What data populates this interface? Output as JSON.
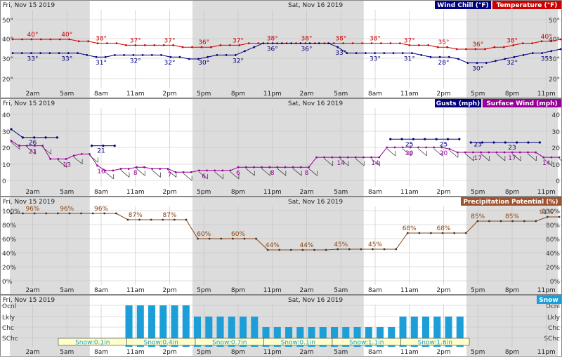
{
  "colors": {
    "night_shade": "#dcdcdc",
    "grid": "#bfbfbf",
    "wind_chill": "#000080",
    "temperature": "#cc0000",
    "gusts": "#000080",
    "surface_wind": "#990099",
    "precip": "#8b4513",
    "precip_legend_bg": "#a0522d",
    "snow": "#1c9fd8",
    "snow_label_bg": "#ffffcc",
    "snow_label_text": "#1c9fd8",
    "barb": "#333333"
  },
  "date_labels": [
    "Fri, Nov 15 2019",
    "Sat, Nov 16 2019"
  ],
  "time_labels": [
    "2am",
    "5am",
    "8am",
    "11am",
    "2pm",
    "5pm",
    "8pm",
    "11pm",
    "2am",
    "5am",
    "8am",
    "11am",
    "2pm",
    "5pm",
    "8pm",
    "11pm"
  ],
  "night_shading_hours": [
    [
      0,
      7
    ],
    [
      16,
      31
    ],
    [
      40,
      48
    ]
  ],
  "chart_data": [
    {
      "type": "line",
      "panel": "temperature",
      "legend": [
        "Wind Chill (°F)",
        "Temperature (°F)"
      ],
      "y_ticks": [
        "50°",
        "40°",
        "30°",
        "20°"
      ],
      "ylim": [
        15,
        55
      ],
      "series": [
        {
          "name": "Temperature (°F)",
          "values": [
            40,
            40,
            40,
            40,
            40,
            40,
            40,
            39,
            39,
            38,
            38,
            38,
            37,
            37,
            37,
            37,
            37,
            37,
            36,
            36,
            36,
            36,
            37,
            37,
            37,
            38,
            38,
            38,
            38,
            38,
            38,
            38,
            38,
            38,
            38,
            38,
            38,
            38,
            38,
            38,
            38,
            38,
            37,
            37,
            37,
            36,
            36,
            35,
            35,
            35,
            35,
            36,
            36,
            37,
            38,
            38,
            39,
            39,
            40
          ],
          "labels": [
            {
              "i": 2,
              "t": "40°"
            },
            {
              "i": 5,
              "t": "40°"
            },
            {
              "i": 8,
              "t": "38°"
            },
            {
              "i": 11,
              "t": "37°"
            },
            {
              "i": 14,
              "t": "37°"
            },
            {
              "i": 17,
              "t": "36°"
            },
            {
              "i": 20,
              "t": "37°"
            },
            {
              "i": 23,
              "t": "38°"
            },
            {
              "i": 26,
              "t": "38°"
            },
            {
              "i": 29,
              "t": "38°"
            },
            {
              "i": 32,
              "t": "38°"
            },
            {
              "i": 35,
              "t": "37°"
            },
            {
              "i": 38,
              "t": "35°"
            },
            {
              "i": 41,
              "t": "36°"
            },
            {
              "i": 44,
              "t": "38°"
            },
            {
              "i": 47,
              "t": "40°"
            }
          ]
        },
        {
          "name": "Wind Chill (°F)",
          "values": [
            33,
            33,
            33,
            33,
            33,
            33,
            33,
            33,
            32,
            31,
            31,
            32,
            32,
            32,
            32,
            32,
            32,
            31,
            31,
            30,
            30,
            31,
            32,
            32,
            32,
            34,
            36,
            38,
            38,
            38,
            38,
            38,
            38,
            38,
            38,
            36,
            33,
            33,
            33,
            33,
            33,
            33,
            33,
            33,
            32,
            31,
            31,
            31,
            30,
            28,
            28,
            28,
            29,
            30,
            31,
            32,
            33,
            33,
            34,
            35
          ],
          "labels": [
            {
              "i": 2,
              "t": "33°"
            },
            {
              "i": 5,
              "t": "33°"
            },
            {
              "i": 8,
              "t": "31°"
            },
            {
              "i": 11,
              "t": "32°"
            },
            {
              "i": 14,
              "t": "32°"
            },
            {
              "i": 17,
              "t": "30°"
            },
            {
              "i": 20,
              "t": "32°"
            },
            {
              "i": 23,
              "t": "36°"
            },
            {
              "i": 26,
              "t": "36°"
            },
            {
              "i": 29,
              "t": "33°"
            },
            {
              "i": 32,
              "t": "33°"
            },
            {
              "i": 35,
              "t": "31°"
            },
            {
              "i": 38,
              "t": "28°"
            },
            {
              "i": 41,
              "t": "30°"
            },
            {
              "i": 44,
              "t": "32°"
            },
            {
              "i": 47,
              "t": "35°"
            }
          ]
        }
      ]
    },
    {
      "type": "line",
      "panel": "wind",
      "legend": [
        "Gusts (mph)",
        "Surface Wind (mph)"
      ],
      "y_ticks": [
        "40",
        "30",
        "20",
        "10",
        "0"
      ],
      "ylim": [
        0,
        45
      ],
      "series": [
        {
          "name": "Surface Wind (mph)",
          "values": [
            24,
            21,
            21,
            21,
            21,
            13,
            13,
            13,
            15,
            16,
            16,
            9,
            6,
            6,
            7,
            7,
            8,
            8,
            7,
            7,
            7,
            5,
            5,
            5,
            6,
            6,
            6,
            6,
            6,
            8,
            8,
            8,
            8,
            8,
            8,
            8,
            8,
            8,
            8,
            14,
            14,
            14,
            14,
            14,
            14,
            14,
            14,
            14,
            20,
            20,
            20,
            20,
            20,
            20,
            20,
            20,
            19,
            17,
            17,
            17,
            17,
            17,
            17,
            17,
            17,
            17,
            17,
            17,
            14,
            14,
            14
          ],
          "labels": [
            {
              "i": 2,
              "t": "21"
            },
            {
              "i": 5,
              "t": "13"
            },
            {
              "i": 8,
              "t": "16"
            },
            {
              "i": 11,
              "t": "8"
            },
            {
              "i": 14,
              "t": "7"
            },
            {
              "i": 17,
              "t": "6"
            },
            {
              "i": 20,
              "t": "6"
            },
            {
              "i": 23,
              "t": "8"
            },
            {
              "i": 26,
              "t": "8"
            },
            {
              "i": 29,
              "t": "14"
            },
            {
              "i": 32,
              "t": "14"
            },
            {
              "i": 35,
              "t": "20"
            },
            {
              "i": 38,
              "t": "20"
            },
            {
              "i": 41,
              "t": "17"
            },
            {
              "i": 44,
              "t": "17"
            },
            {
              "i": 47,
              "t": "14"
            }
          ]
        },
        {
          "name": "Gusts (mph)",
          "segments": [
            {
              "start": 0,
              "values": [
                31,
                26,
                26,
                26,
                26
              ]
            },
            {
              "start": 7,
              "values": [
                21,
                21,
                21
              ]
            },
            {
              "start": 33,
              "values": [
                25,
                25,
                25,
                25,
                25,
                25,
                25
              ]
            },
            {
              "start": 40,
              "values": [
                23,
                23,
                23,
                23,
                23,
                23,
                23
              ]
            }
          ],
          "labels": [
            {
              "i": 2,
              "t": "26"
            },
            {
              "i": 8,
              "t": "21"
            },
            {
              "i": 35,
              "t": "25"
            },
            {
              "i": 38,
              "t": "25"
            },
            {
              "i": 41,
              "t": "23"
            },
            {
              "i": 44,
              "t": "23"
            }
          ]
        }
      ]
    },
    {
      "type": "line",
      "panel": "precipitation",
      "legend": [
        "Precipitation Potential (%)"
      ],
      "y_ticks": [
        "100%",
        "80%",
        "60%",
        "40%",
        "20%",
        "0%"
      ],
      "ylim": [
        0,
        105
      ],
      "series": [
        {
          "name": "Precipitation Potential (%)",
          "values": [
            96,
            96,
            96,
            96,
            96,
            96,
            96,
            96,
            96,
            96,
            87,
            87,
            87,
            87,
            87,
            87,
            60,
            60,
            60,
            60,
            60,
            60,
            44,
            44,
            44,
            44,
            44,
            44,
            45,
            45,
            45,
            45,
            45,
            45,
            68,
            68,
            68,
            68,
            68,
            68,
            85,
            85,
            85,
            85,
            85,
            85,
            91,
            91
          ],
          "labels": [
            {
              "i": 2,
              "t": "96%"
            },
            {
              "i": 5,
              "t": "96%"
            },
            {
              "i": 8,
              "t": "96%"
            },
            {
              "i": 11,
              "t": "87%"
            },
            {
              "i": 14,
              "t": "87%"
            },
            {
              "i": 17,
              "t": "60%"
            },
            {
              "i": 20,
              "t": "60%"
            },
            {
              "i": 23,
              "t": "44%"
            },
            {
              "i": 26,
              "t": "44%"
            },
            {
              "i": 29,
              "t": "45%"
            },
            {
              "i": 32,
              "t": "45%"
            },
            {
              "i": 35,
              "t": "68%"
            },
            {
              "i": 38,
              "t": "68%"
            },
            {
              "i": 41,
              "t": "85%"
            },
            {
              "i": 44,
              "t": "85%"
            },
            {
              "i": 47,
              "t": "91%"
            }
          ]
        }
      ]
    },
    {
      "type": "bar",
      "panel": "snow",
      "legend": [
        "Snow"
      ],
      "categories_y": [
        "Ocnl",
        "Lkly",
        "Chc",
        "SChc"
      ],
      "bars": [
        {
          "hour": 10,
          "level": 4
        },
        {
          "hour": 11,
          "level": 4
        },
        {
          "hour": 12,
          "level": 4
        },
        {
          "hour": 13,
          "level": 4
        },
        {
          "hour": 14,
          "level": 4
        },
        {
          "hour": 15,
          "level": 4
        },
        {
          "hour": 16,
          "level": 3
        },
        {
          "hour": 17,
          "level": 3
        },
        {
          "hour": 18,
          "level": 3
        },
        {
          "hour": 19,
          "level": 3
        },
        {
          "hour": 20,
          "level": 3
        },
        {
          "hour": 21,
          "level": 3
        },
        {
          "hour": 22,
          "level": 2
        },
        {
          "hour": 23,
          "level": 2
        },
        {
          "hour": 24,
          "level": 2
        },
        {
          "hour": 25,
          "level": 2
        },
        {
          "hour": 26,
          "level": 2
        },
        {
          "hour": 27,
          "level": 2
        },
        {
          "hour": 28,
          "level": 2
        },
        {
          "hour": 29,
          "level": 2
        },
        {
          "hour": 30,
          "level": 2
        },
        {
          "hour": 31,
          "level": 2
        },
        {
          "hour": 32,
          "level": 2
        },
        {
          "hour": 33,
          "level": 2
        },
        {
          "hour": 34,
          "level": 3
        },
        {
          "hour": 35,
          "level": 3
        },
        {
          "hour": 36,
          "level": 3
        },
        {
          "hour": 37,
          "level": 3
        },
        {
          "hour": 38,
          "level": 3
        },
        {
          "hour": 39,
          "level": 3
        }
      ],
      "amounts": [
        {
          "start": 4,
          "end": 10,
          "text": "Snow:0.1in"
        },
        {
          "start": 10,
          "end": 16,
          "text": "Snow:0.4in"
        },
        {
          "start": 16,
          "end": 22,
          "text": "Snow:0.7in"
        },
        {
          "start": 22,
          "end": 28,
          "text": "Snow:0.1in"
        },
        {
          "start": 28,
          "end": 34,
          "text": "Snow:1.1in"
        },
        {
          "start": 34,
          "end": 40,
          "text": "Snow:1.6in"
        }
      ]
    }
  ]
}
